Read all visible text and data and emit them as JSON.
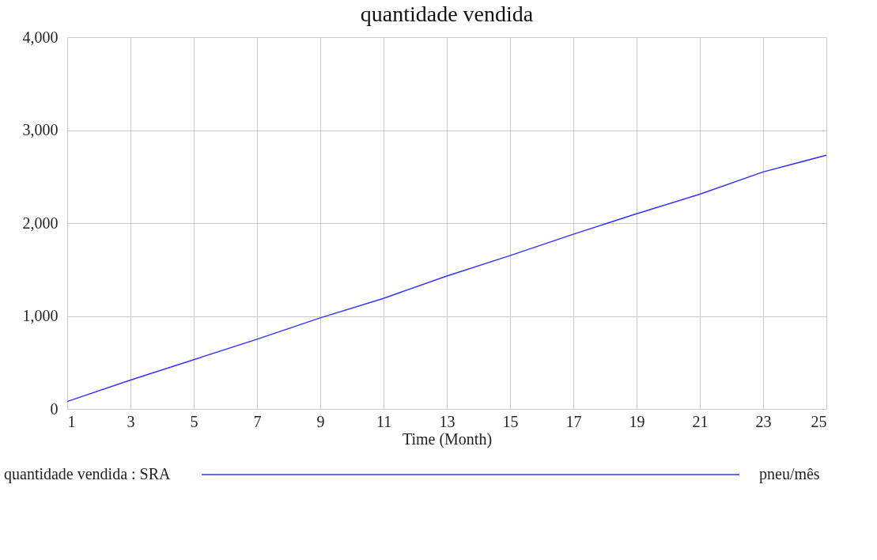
{
  "chart_data": {
    "type": "line",
    "title": "quantidade vendida",
    "xlabel": "Time (Month)",
    "x": [
      1,
      3,
      5,
      7,
      9,
      11,
      13,
      15,
      17,
      19,
      21,
      23,
      25
    ],
    "series": [
      {
        "name": "quantidade vendida : SRA",
        "color": "#3333ff",
        "values": [
          80,
          310,
          530,
          750,
          980,
          1190,
          1430,
          1650,
          1880,
          2100,
          2310,
          2550,
          2730
        ]
      }
    ],
    "xlim": [
      1,
      25
    ],
    "xticks": [
      1,
      3,
      5,
      7,
      9,
      11,
      13,
      15,
      17,
      19,
      21,
      23,
      25
    ],
    "ylim": [
      0,
      4000
    ],
    "yticks": [
      {
        "value": 0,
        "label": "0"
      },
      {
        "value": 1000,
        "label": "1,000"
      },
      {
        "value": 2000,
        "label": "2,000"
      },
      {
        "value": 3000,
        "label": "3,000"
      },
      {
        "value": 4000,
        "label": "4,000"
      }
    ],
    "grid": true,
    "legend": "bottom",
    "line_style": "solid",
    "annotations": [
      "pneu/mês"
    ]
  }
}
